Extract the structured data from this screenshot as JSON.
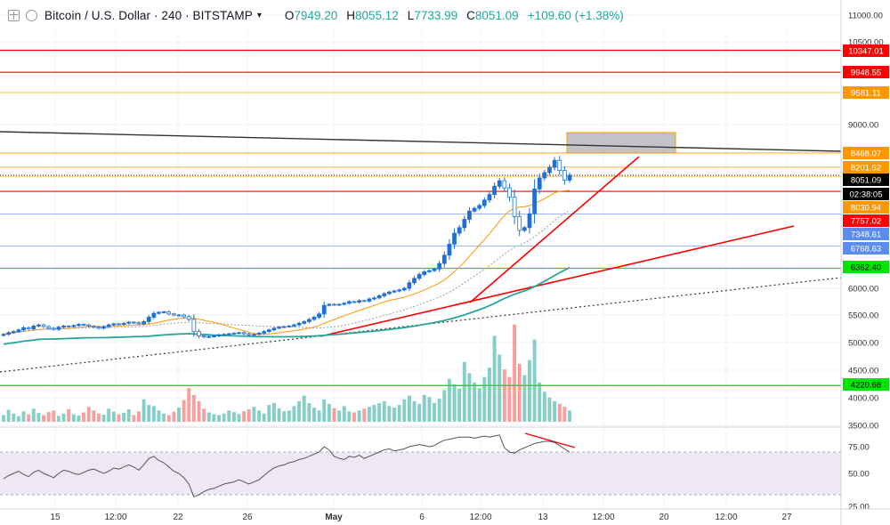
{
  "header": {
    "title": "Bitcoin / U.S. Dollar · 240 · BITSTAMP",
    "open_key": "O",
    "open": "7949.20",
    "high_key": "H",
    "high": "8055.12",
    "low_key": "L",
    "low": "7733.99",
    "close_key": "C",
    "close": "8051.09",
    "change": "+109.60 (+1.38%)"
  },
  "colors": {
    "up": "#26a69a",
    "down": "#ef5350",
    "red_line": "#ff0000",
    "orange_line": "#ff9800",
    "blue_line": "#2962ff",
    "green_line": "#00e600",
    "rsi_fill": "#ede7f6"
  },
  "chart_data": {
    "type": "candlestick",
    "symbol": "BTCUSD",
    "interval": "240",
    "exchange": "BITSTAMP",
    "y_range": [
      3500,
      11200
    ],
    "x_ticks": [
      "15",
      "12:00",
      "22",
      "26",
      "May",
      "6",
      "12:00",
      "13",
      "12:00",
      "20",
      "12:00",
      "27"
    ],
    "y_ticks": [
      "11000.00",
      "10500.00",
      "9000.00",
      "6000.00",
      "5500.00",
      "5000.00",
      "4500.00",
      "4000.00",
      "3500.00"
    ],
    "price_labels": [
      {
        "value": "10347.01",
        "color": "#ff0000",
        "kind": "red"
      },
      {
        "value": "9948.55",
        "color": "#ff0000",
        "kind": "red"
      },
      {
        "value": "9581.11",
        "color": "#ff9800",
        "kind": "orange"
      },
      {
        "value": "8468.07",
        "color": "#ff9800",
        "kind": "orange"
      },
      {
        "value": "8201.52",
        "color": "#ff9800",
        "kind": "orange"
      },
      {
        "value": "8051.09",
        "color": "#000000",
        "kind": "current"
      },
      {
        "value": "02:38:05",
        "color": "#000000",
        "kind": "timer"
      },
      {
        "value": "8030.94",
        "color": "#ff9800",
        "kind": "orange-fill"
      },
      {
        "value": "7757.02",
        "color": "#ff0000",
        "kind": "red"
      },
      {
        "value": "7348.61",
        "color": "#5b8def",
        "kind": "blue"
      },
      {
        "value": "6768.63",
        "color": "#5b8def",
        "kind": "blue"
      },
      {
        "value": "6362.40",
        "color": "#00e600",
        "kind": "green"
      },
      {
        "value": "4220.68",
        "color": "#00e600",
        "kind": "green"
      }
    ],
    "close_path": [
      5150,
      5180,
      5200,
      5230,
      5270,
      5250,
      5300,
      5320,
      5290,
      5260,
      5240,
      5280,
      5300,
      5290,
      5310,
      5330,
      5320,
      5300,
      5280,
      5260,
      5290,
      5320,
      5340,
      5330,
      5350,
      5370,
      5360,
      5340,
      5380,
      5460,
      5530,
      5550,
      5560,
      5520,
      5500,
      5500,
      5470,
      5420,
      5200,
      5120,
      5100,
      5110,
      5120,
      5140,
      5150,
      5160,
      5170,
      5180,
      5160,
      5140,
      5150,
      5170,
      5200,
      5230,
      5260,
      5280,
      5290,
      5300,
      5320,
      5350,
      5380,
      5420,
      5460,
      5520,
      5680,
      5700,
      5690,
      5700,
      5720,
      5750,
      5740,
      5770,
      5760,
      5800,
      5820,
      5860,
      5900,
      5930,
      5950,
      5970,
      6000,
      6100,
      6180,
      6250,
      6300,
      6320,
      6350,
      6450,
      6600,
      6800,
      7000,
      7100,
      7250,
      7400,
      7450,
      7500,
      7600,
      7700,
      7850,
      7950,
      7820,
      7650,
      7300,
      7050,
      7100,
      7350,
      7800,
      8000,
      8100,
      8200,
      8330,
      8140,
      7960,
      8051
    ],
    "volume": [
      0.18,
      0.32,
      0.22,
      0.15,
      0.28,
      0.2,
      0.35,
      0.24,
      0.18,
      0.26,
      0.3,
      0.16,
      0.22,
      0.34,
      0.2,
      0.17,
      0.25,
      0.4,
      0.3,
      0.22,
      0.19,
      0.35,
      0.27,
      0.2,
      0.24,
      0.33,
      0.18,
      0.28,
      0.6,
      0.45,
      0.42,
      0.3,
      0.22,
      0.18,
      0.27,
      0.38,
      0.58,
      0.9,
      0.72,
      0.55,
      0.35,
      0.25,
      0.2,
      0.18,
      0.22,
      0.3,
      0.26,
      0.21,
      0.28,
      0.33,
      0.4,
      0.3,
      0.22,
      0.45,
      0.5,
      0.36,
      0.28,
      0.3,
      0.42,
      0.55,
      0.7,
      0.5,
      0.38,
      0.3,
      0.6,
      0.48,
      0.36,
      0.3,
      0.42,
      0.28,
      0.25,
      0.3,
      0.35,
      0.4,
      0.45,
      0.5,
      0.55,
      0.42,
      0.38,
      0.45,
      0.6,
      0.7,
      0.55,
      0.48,
      0.72,
      0.66,
      0.5,
      0.62,
      0.85,
      1.15,
      1.0,
      0.88,
      1.6,
      1.3,
      1.05,
      0.9,
      1.2,
      1.45,
      2.3,
      1.8,
      1.4,
      1.2,
      2.6,
      1.55,
      1.25,
      1.65,
      2.2,
      1.05,
      0.8,
      0.65,
      0.55,
      0.48,
      0.4,
      0.3
    ],
    "rsi": [
      45,
      48,
      50,
      52,
      49,
      47,
      51,
      53,
      50,
      48,
      46,
      50,
      53,
      52,
      50,
      49,
      51,
      53,
      54,
      52,
      50,
      52,
      55,
      54,
      56,
      58,
      56,
      53,
      58,
      64,
      66,
      62,
      60,
      56,
      52,
      50,
      46,
      40,
      28,
      30,
      33,
      35,
      36,
      38,
      40,
      41,
      42,
      44,
      42,
      40,
      42,
      44,
      48,
      52,
      55,
      57,
      58,
      60,
      61,
      63,
      64,
      66,
      68,
      70,
      75,
      72,
      66,
      64,
      63,
      66,
      65,
      67,
      64,
      66,
      68,
      70,
      72,
      73,
      71,
      72,
      73,
      75,
      76,
      77,
      76,
      75,
      76,
      79,
      81,
      82,
      83,
      84,
      84,
      84,
      83,
      84,
      85,
      84,
      85,
      86,
      74,
      70,
      69,
      72,
      74,
      76,
      78,
      79,
      80,
      80,
      79,
      76,
      73,
      70
    ],
    "rsi_ticks": [
      "75.00",
      "50.00",
      "25.00"
    ]
  }
}
